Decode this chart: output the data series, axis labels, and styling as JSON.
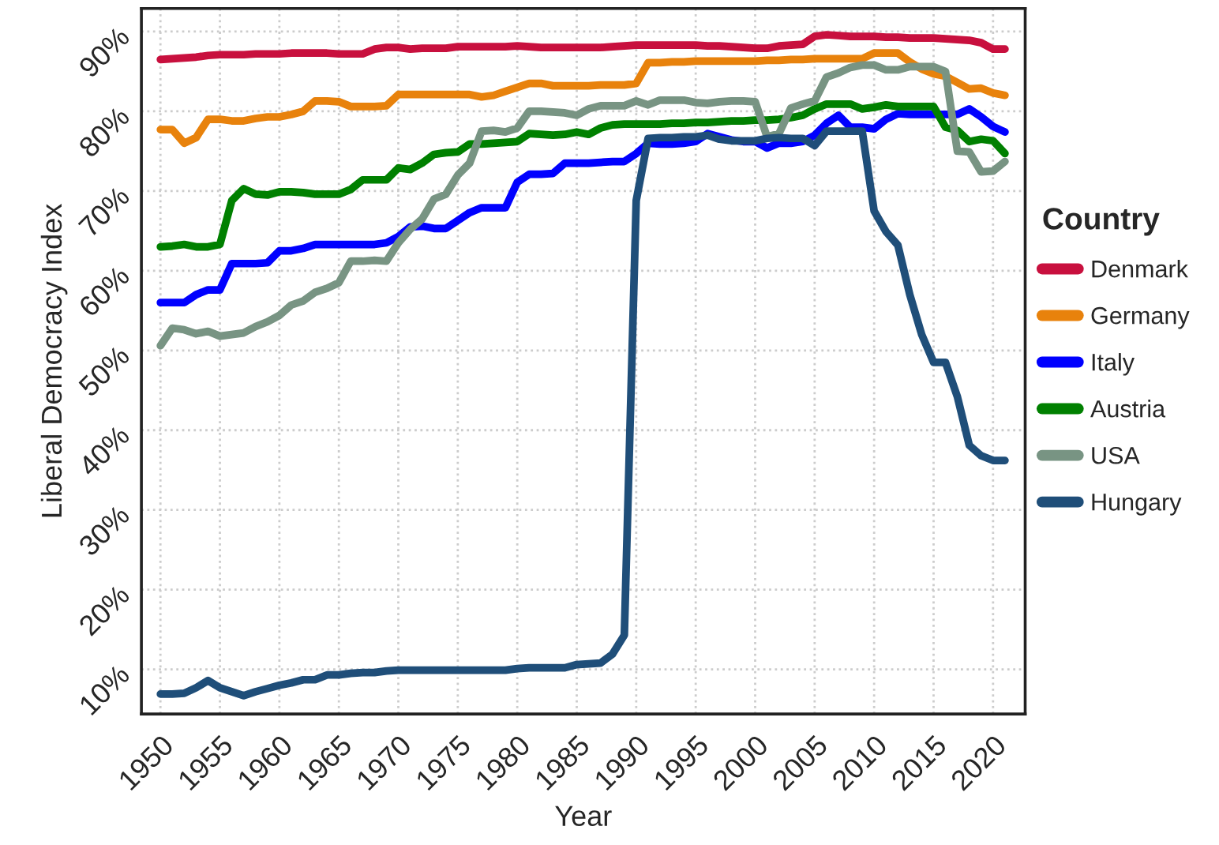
{
  "chart_data": {
    "type": "line",
    "xlabel": "Year",
    "ylabel": "Liberal Democracy Index",
    "legend_title": "Country",
    "legend": "right",
    "grid": true,
    "line_style": "solid",
    "x": [
      1950,
      1951,
      1952,
      1953,
      1954,
      1955,
      1956,
      1957,
      1958,
      1959,
      1960,
      1961,
      1962,
      1963,
      1964,
      1965,
      1966,
      1967,
      1968,
      1969,
      1970,
      1971,
      1972,
      1973,
      1974,
      1975,
      1976,
      1977,
      1978,
      1979,
      1980,
      1981,
      1982,
      1983,
      1984,
      1985,
      1986,
      1987,
      1988,
      1989,
      1990,
      1991,
      1992,
      1993,
      1994,
      1995,
      1996,
      1997,
      1998,
      1999,
      2000,
      2001,
      2002,
      2003,
      2004,
      2005,
      2006,
      2007,
      2008,
      2009,
      2010,
      2011,
      2012,
      2013,
      2014,
      2015,
      2016,
      2017,
      2018,
      2019,
      2020,
      2021
    ],
    "xlim": [
      1948.4,
      2022.7
    ],
    "xticks": [
      1950,
      1955,
      1960,
      1965,
      1970,
      1975,
      1980,
      1985,
      1990,
      1995,
      2000,
      2005,
      2010,
      2015,
      2020
    ],
    "ylim": [
      4.4,
      92.9
    ],
    "yticks": [
      {
        "value": 10,
        "label": "10%"
      },
      {
        "value": 20,
        "label": "20%"
      },
      {
        "value": 30,
        "label": "30%"
      },
      {
        "value": 40,
        "label": "40%"
      },
      {
        "value": 50,
        "label": "50%"
      },
      {
        "value": 60,
        "label": "60%"
      },
      {
        "value": 70,
        "label": "70%"
      },
      {
        "value": 80,
        "label": "80%"
      },
      {
        "value": 90,
        "label": "90%"
      }
    ],
    "series": [
      {
        "name": "Denmark",
        "color": "#c8103e",
        "values": [
          86.5,
          86.6,
          86.7,
          86.8,
          87.0,
          87.1,
          87.1,
          87.1,
          87.2,
          87.2,
          87.2,
          87.3,
          87.3,
          87.3,
          87.3,
          87.2,
          87.2,
          87.2,
          87.8,
          88.0,
          88.0,
          87.8,
          87.9,
          87.9,
          87.9,
          88.1,
          88.1,
          88.1,
          88.1,
          88.1,
          88.2,
          88.1,
          88.0,
          88.0,
          88.0,
          88.0,
          88.0,
          88.0,
          88.1,
          88.2,
          88.3,
          88.3,
          88.3,
          88.3,
          88.3,
          88.3,
          88.2,
          88.2,
          88.1,
          88.0,
          87.9,
          87.9,
          88.2,
          88.3,
          88.4,
          89.4,
          89.6,
          89.5,
          89.4,
          89.4,
          89.4,
          89.3,
          89.3,
          89.2,
          89.2,
          89.2,
          89.1,
          89.0,
          88.9,
          88.6,
          87.8,
          87.8
        ]
      },
      {
        "name": "Germany",
        "color": "#e8820c",
        "values": [
          77.7,
          77.7,
          76.0,
          76.7,
          79.0,
          79.0,
          78.8,
          78.8,
          79.1,
          79.3,
          79.3,
          79.6,
          80.0,
          81.3,
          81.3,
          81.2,
          80.6,
          80.6,
          80.6,
          80.7,
          82.1,
          82.1,
          82.1,
          82.1,
          82.1,
          82.1,
          82.1,
          81.8,
          82.0,
          82.5,
          83.0,
          83.5,
          83.5,
          83.2,
          83.2,
          83.2,
          83.2,
          83.3,
          83.3,
          83.3,
          83.5,
          86.1,
          86.1,
          86.2,
          86.2,
          86.3,
          86.3,
          86.3,
          86.3,
          86.3,
          86.3,
          86.4,
          86.4,
          86.5,
          86.5,
          86.6,
          86.6,
          86.6,
          86.6,
          86.6,
          87.3,
          87.3,
          87.3,
          86.2,
          85.3,
          84.7,
          84.4,
          83.6,
          82.8,
          82.9,
          82.3,
          82.0
        ]
      },
      {
        "name": "Italy",
        "color": "#0000ff",
        "values": [
          56.0,
          56.0,
          56.0,
          57.0,
          57.6,
          57.6,
          60.9,
          60.9,
          60.9,
          61.0,
          62.5,
          62.5,
          62.8,
          63.3,
          63.3,
          63.3,
          63.3,
          63.3,
          63.3,
          63.5,
          64.3,
          65.5,
          65.6,
          65.3,
          65.3,
          66.3,
          67.3,
          67.9,
          67.9,
          67.9,
          71.1,
          72.1,
          72.1,
          72.2,
          73.5,
          73.5,
          73.5,
          73.6,
          73.7,
          73.7,
          74.7,
          76.0,
          75.9,
          75.9,
          76.0,
          76.2,
          77.2,
          76.8,
          76.4,
          76.2,
          76.2,
          75.4,
          76.0,
          76.0,
          76.2,
          77.0,
          78.5,
          79.5,
          78.0,
          78.0,
          77.8,
          79.0,
          79.7,
          79.6,
          79.6,
          79.6,
          79.6,
          79.6,
          80.3,
          79.3,
          78.1,
          77.4
        ]
      },
      {
        "name": "Austria",
        "color": "#008000",
        "values": [
          63.0,
          63.1,
          63.3,
          63.0,
          63.0,
          63.3,
          68.8,
          70.3,
          69.6,
          69.5,
          69.9,
          69.9,
          69.8,
          69.6,
          69.6,
          69.6,
          70.2,
          71.4,
          71.4,
          71.4,
          72.9,
          72.7,
          73.5,
          74.6,
          74.8,
          74.9,
          75.9,
          75.9,
          76.0,
          76.1,
          76.2,
          77.2,
          77.1,
          77.0,
          77.1,
          77.4,
          77.1,
          77.9,
          78.3,
          78.4,
          78.4,
          78.4,
          78.4,
          78.5,
          78.5,
          78.6,
          78.6,
          78.7,
          78.8,
          78.8,
          78.9,
          78.9,
          79.0,
          79.2,
          79.5,
          80.3,
          80.9,
          80.9,
          80.9,
          80.3,
          80.5,
          80.8,
          80.6,
          80.6,
          80.6,
          80.6,
          78.0,
          77.6,
          76.2,
          76.5,
          76.3,
          74.7
        ]
      },
      {
        "name": "USA",
        "color": "#789483",
        "values": [
          50.6,
          52.8,
          52.6,
          52.1,
          52.4,
          51.8,
          52.0,
          52.2,
          53.0,
          53.6,
          54.4,
          55.7,
          56.2,
          57.3,
          57.8,
          58.5,
          61.2,
          61.2,
          61.3,
          61.2,
          63.5,
          65.2,
          66.5,
          69.0,
          69.6,
          72.0,
          73.5,
          77.5,
          77.6,
          77.4,
          77.9,
          80.0,
          80.0,
          79.9,
          79.8,
          79.5,
          80.3,
          80.7,
          80.7,
          80.7,
          81.3,
          80.8,
          81.4,
          81.4,
          81.4,
          81.1,
          81.0,
          81.2,
          81.3,
          81.3,
          81.2,
          76.8,
          77.2,
          80.4,
          80.9,
          81.3,
          84.3,
          84.8,
          85.5,
          85.8,
          85.8,
          85.2,
          85.2,
          85.6,
          85.6,
          85.6,
          85.0,
          75.0,
          74.9,
          72.4,
          72.5,
          73.7
        ]
      },
      {
        "name": "Hungary",
        "color": "#1f4e79",
        "values": [
          6.9,
          6.9,
          7.0,
          7.7,
          8.6,
          7.7,
          7.2,
          6.7,
          7.2,
          7.6,
          8.0,
          8.3,
          8.7,
          8.7,
          9.3,
          9.3,
          9.5,
          9.6,
          9.6,
          9.8,
          9.9,
          9.9,
          9.9,
          9.9,
          9.9,
          9.9,
          9.9,
          9.9,
          9.9,
          9.9,
          10.1,
          10.2,
          10.2,
          10.2,
          10.2,
          10.6,
          10.7,
          10.8,
          11.9,
          14.3,
          68.8,
          76.6,
          76.7,
          76.7,
          76.8,
          76.8,
          77.0,
          76.5,
          76.3,
          76.3,
          76.3,
          76.6,
          76.7,
          76.6,
          76.6,
          75.7,
          77.5,
          77.5,
          77.5,
          77.5,
          67.5,
          64.9,
          63.2,
          57.0,
          52.0,
          48.5,
          48.5,
          44.2,
          38.1,
          36.8,
          36.2,
          36.2
        ]
      }
    ]
  }
}
